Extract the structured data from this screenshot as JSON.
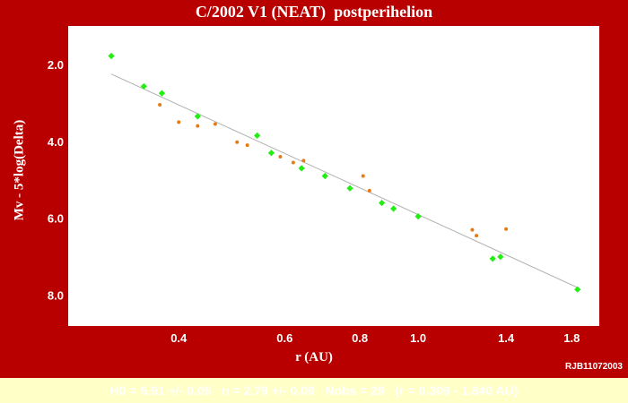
{
  "title": "C/2002 V1 (NEAT)  postperihelion",
  "credit": "RJB11072003",
  "footer": "H0 = 5.91 +/- 0.05   n = 2.79 +/- 0.09   Nobs = 29   (r = 0.309 - 1.840 AU)",
  "colors": {
    "background": "#b80000",
    "plot_area": "#ffffff",
    "series_green": "#22ee11",
    "series_orange": "#e87a12",
    "fit_line": "#b0b0b0",
    "footer_bg": "#ffffc8"
  },
  "chart_data": {
    "type": "scatter",
    "title": "C/2002 V1 (NEAT)  postperihelion",
    "xlabel": "r (AU)",
    "ylabel": "Mv - 5*log(Delta)",
    "x_scale": "log",
    "xlim": [
      0.262,
      2.0
    ],
    "ylim": [
      8.8,
      1.0
    ],
    "y_inverted": true,
    "x_ticks": [
      "0.4",
      "0.6",
      "0.8",
      "1.0",
      "1.4",
      "1.8"
    ],
    "y_ticks": [
      "2.0",
      "4.0",
      "6.0",
      "8.0"
    ],
    "grid": false,
    "fit_line": [
      [
        0.309,
        2.25
      ],
      [
        1.84,
        7.8
      ]
    ],
    "series": [
      {
        "marker": "diamond",
        "color": "#22ee11",
        "points": [
          [
            0.309,
            1.78
          ],
          [
            0.35,
            2.57
          ],
          [
            0.375,
            2.75
          ],
          [
            0.43,
            3.35
          ],
          [
            0.54,
            3.85
          ],
          [
            0.57,
            4.3
          ],
          [
            0.64,
            4.7
          ],
          [
            0.7,
            4.9
          ],
          [
            0.77,
            5.22
          ],
          [
            0.87,
            5.6
          ],
          [
            0.91,
            5.75
          ],
          [
            1.0,
            5.95
          ],
          [
            1.33,
            7.05
          ],
          [
            1.37,
            7.0
          ],
          [
            1.84,
            7.85
          ]
        ]
      },
      {
        "marker": "dot",
        "color": "#e87a12",
        "points": [
          [
            0.372,
            3.05
          ],
          [
            0.4,
            3.5
          ],
          [
            0.43,
            3.6
          ],
          [
            0.46,
            3.55
          ],
          [
            0.5,
            4.02
          ],
          [
            0.52,
            4.1
          ],
          [
            0.59,
            4.4
          ],
          [
            0.62,
            4.55
          ],
          [
            0.645,
            4.5
          ],
          [
            0.81,
            4.9
          ],
          [
            0.83,
            5.28
          ],
          [
            1.23,
            6.3
          ],
          [
            1.25,
            6.45
          ],
          [
            1.4,
            6.28
          ]
        ]
      }
    ]
  }
}
